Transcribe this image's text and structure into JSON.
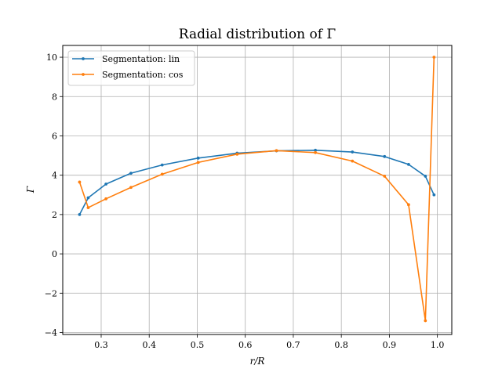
{
  "chart_data": {
    "type": "line",
    "title": "Radial distribution of Γ",
    "xlabel": "r/R",
    "ylabel": "Γ",
    "xlim": [
      0.22,
      1.03
    ],
    "ylim": [
      -4.1,
      10.6
    ],
    "xticks": [
      0.3,
      0.4,
      0.5,
      0.6,
      0.7,
      0.8,
      0.9,
      1.0
    ],
    "xtick_labels": [
      "0.3",
      "0.4",
      "0.5",
      "0.6",
      "0.7",
      "0.8",
      "0.9",
      "1.0"
    ],
    "yticks": [
      -4,
      -2,
      0,
      2,
      4,
      6,
      8,
      10
    ],
    "ytick_labels": [
      "−4",
      "−2",
      "0",
      "2",
      "4",
      "6",
      "8",
      "10"
    ],
    "grid": true,
    "legend_position": "top-left",
    "series": [
      {
        "name": "Segmentation: lin",
        "color": "#1f77b4",
        "x": [
          0.255,
          0.273,
          0.31,
          0.362,
          0.427,
          0.502,
          0.583,
          0.665,
          0.746,
          0.823,
          0.89,
          0.94,
          0.975,
          0.993
        ],
        "y": [
          2.0,
          2.85,
          3.55,
          4.1,
          4.52,
          4.87,
          5.12,
          5.24,
          5.27,
          5.18,
          4.95,
          4.55,
          3.95,
          3.0
        ]
      },
      {
        "name": "Segmentation: cos",
        "color": "#ff7f0e",
        "x": [
          0.255,
          0.273,
          0.31,
          0.362,
          0.427,
          0.502,
          0.583,
          0.665,
          0.746,
          0.823,
          0.89,
          0.94,
          0.975,
          0.993
        ],
        "y": [
          3.65,
          2.35,
          2.8,
          3.38,
          4.05,
          4.65,
          5.07,
          5.25,
          5.15,
          4.72,
          3.95,
          2.5,
          -3.4,
          10.0
        ]
      }
    ]
  }
}
